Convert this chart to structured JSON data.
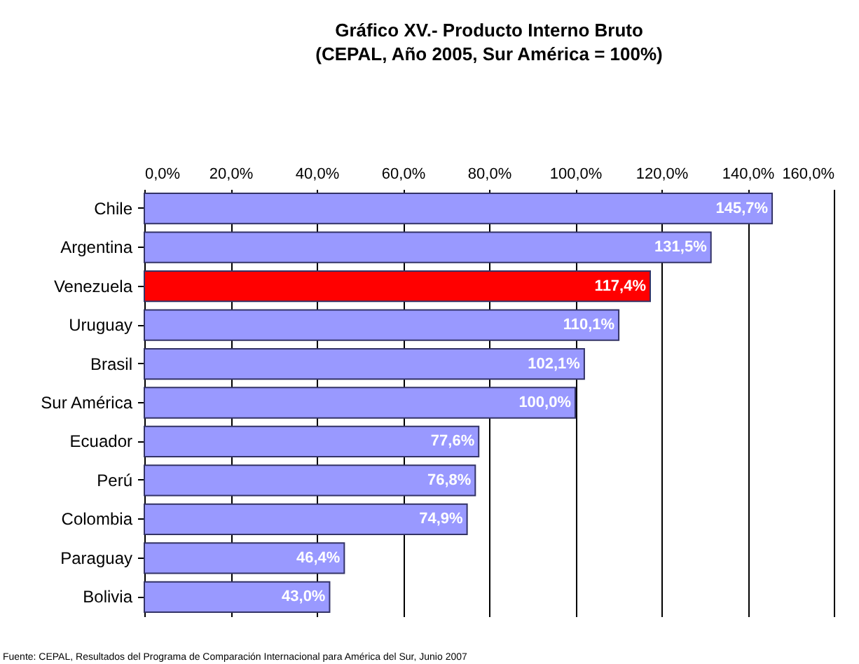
{
  "chart_data": {
    "type": "bar",
    "orientation": "horizontal",
    "title": "Gráfico XV.- Producto Interno Bruto",
    "subtitle": "(CEPAL, Año 2005, Sur América = 100%)",
    "categories": [
      "Chile",
      "Argentina",
      "Venezuela",
      "Uruguay",
      "Brasil",
      "Sur América",
      "Ecuador",
      "Perú",
      "Colombia",
      "Paraguay",
      "Bolivia"
    ],
    "values": [
      145.7,
      131.5,
      117.4,
      110.1,
      102.1,
      100.0,
      77.6,
      76.8,
      74.9,
      46.4,
      43.0
    ],
    "colors": [
      "#9999ff",
      "#9999ff",
      "#ff0000",
      "#9999ff",
      "#9999ff",
      "#9999ff",
      "#9999ff",
      "#9999ff",
      "#9999ff",
      "#9999ff",
      "#9999ff"
    ],
    "value_labels": [
      "145,7%",
      "131,5%",
      "117,4%",
      "110,1%",
      "102,1%",
      "100,0%",
      "77,6%",
      "76,8%",
      "74,9%",
      "46,4%",
      "43,0%"
    ],
    "xlim": [
      0,
      160
    ],
    "xticks": [
      {
        "value": 0,
        "label": "0,0%"
      },
      {
        "value": 20,
        "label": "20,0%"
      },
      {
        "value": 40,
        "label": "40,0%"
      },
      {
        "value": 60,
        "label": "60,0%"
      },
      {
        "value": 80,
        "label": "80,0%"
      },
      {
        "value": 100,
        "label": "100,0%"
      },
      {
        "value": 120,
        "label": "120,0%"
      },
      {
        "value": 140,
        "label": "140,0%"
      },
      {
        "value": 160,
        "label": "160,0%"
      }
    ],
    "grid": "x",
    "annotations": [
      "Fuente: CEPAL,  Resultados del Programa de Comparación Internacional para América del Sur, Junio 2007"
    ]
  }
}
